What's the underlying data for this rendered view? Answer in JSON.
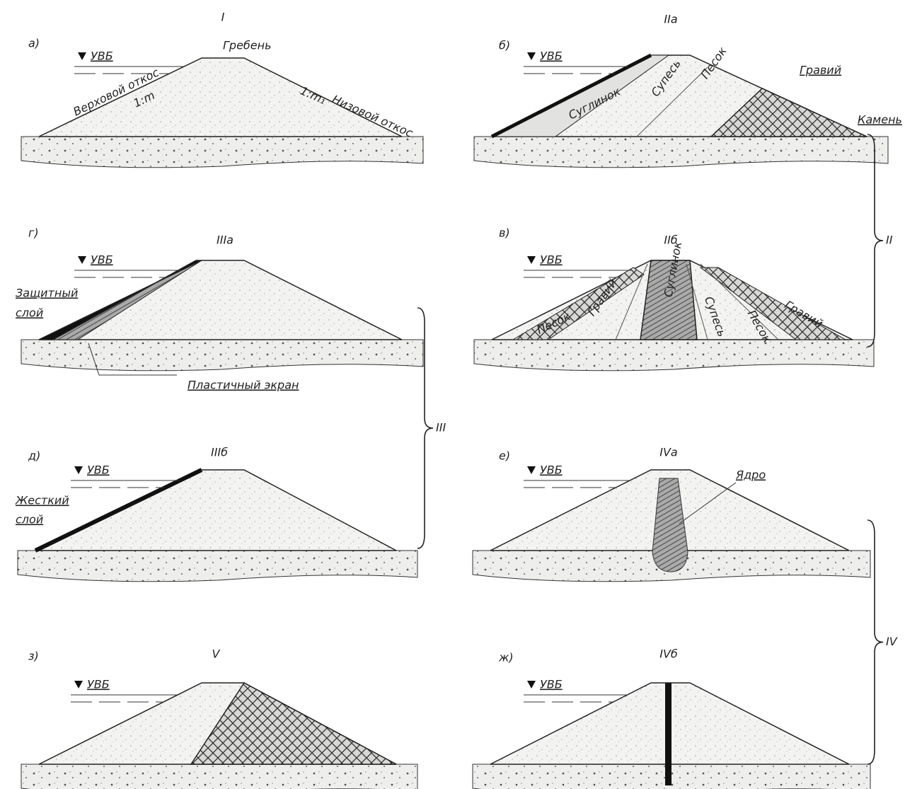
{
  "panels": [
    {
      "letter": "а)",
      "type": "I",
      "water_level": "УВБ",
      "labels": [
        "Гребень",
        "Верховой откос",
        "1:m",
        "Низовой откос",
        "1:m₁"
      ]
    },
    {
      "letter": "б)",
      "type": "IIа",
      "water_level": "УВБ",
      "labels": [
        "Суглинок",
        "Супесь",
        "Песок",
        "Гравий",
        "Камень"
      ]
    },
    {
      "letter": "г)",
      "type": "IIIа",
      "water_level": "УВБ",
      "labels": [
        "Защитный",
        "слой",
        "Пластичный экран"
      ]
    },
    {
      "letter": "в)",
      "type": "IIб",
      "water_level": "УВБ",
      "labels": [
        "Песок",
        "Гравий",
        "Суглинок",
        "Супесь",
        "Песок",
        "Гравий"
      ]
    },
    {
      "letter": "д)",
      "type": "IIIб",
      "water_level": "УВБ",
      "labels": [
        "Жесткий",
        "слой"
      ]
    },
    {
      "letter": "е)",
      "type": "IVа",
      "water_level": "УВБ",
      "labels": [
        "Ядро"
      ]
    },
    {
      "letter": "з)",
      "type": "V",
      "water_level": "УВБ",
      "labels": []
    },
    {
      "letter": "ж)",
      "type": "IVб",
      "water_level": "УВБ",
      "labels": []
    }
  ],
  "groups": [
    {
      "label": "II"
    },
    {
      "label": "III"
    },
    {
      "label": "IV"
    }
  ]
}
